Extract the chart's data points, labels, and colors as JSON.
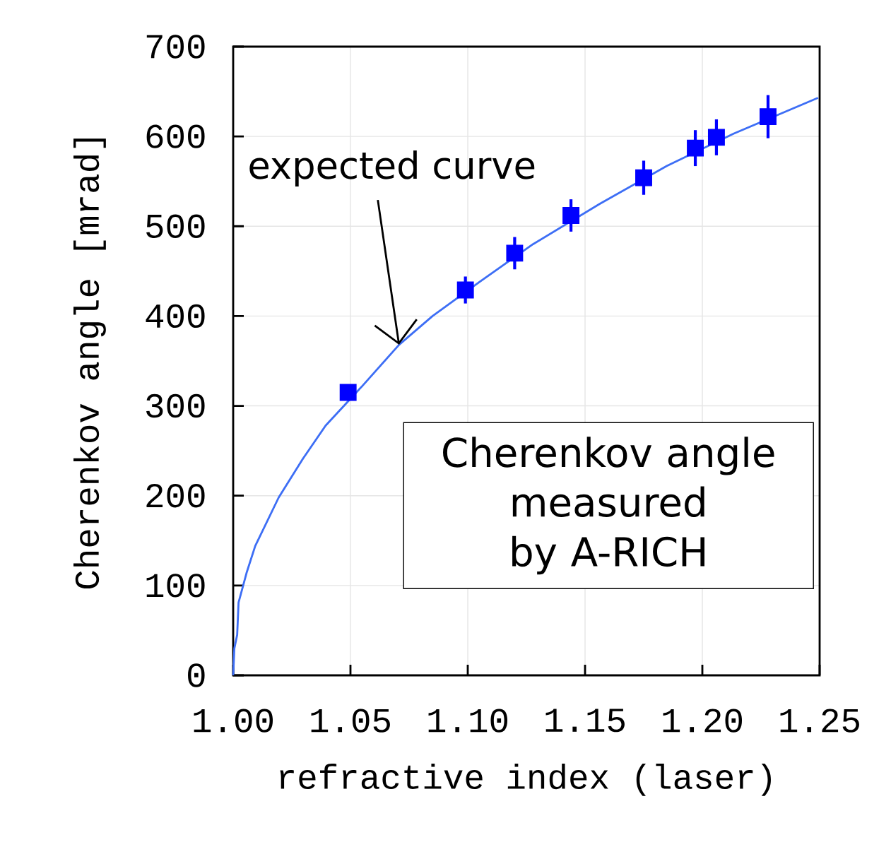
{
  "chart_data": {
    "type": "line",
    "xlabel": "refractive index (laser)",
    "ylabel": "Cherenkov angle [mrad]",
    "xlim": [
      1.0,
      1.25
    ],
    "ylim": [
      0,
      700
    ],
    "xticks": [
      {
        "value": 1.0,
        "label": "1.00"
      },
      {
        "value": 1.05,
        "label": "1.05"
      },
      {
        "value": 1.1,
        "label": "1.10"
      },
      {
        "value": 1.15,
        "label": "1.15"
      },
      {
        "value": 1.2,
        "label": "1.20"
      },
      {
        "value": 1.25,
        "label": "1.25"
      }
    ],
    "yticks": [
      0,
      100,
      200,
      300,
      400,
      500,
      600,
      700
    ],
    "grid": true,
    "series": [
      {
        "color": "#3d6ef5",
        "marker": "none",
        "x": [
          1.0,
          1.0005,
          1.0017,
          1.0023,
          1.0057,
          1.0094,
          1.0194,
          1.0297,
          1.0394,
          1.055,
          1.0707,
          1.085,
          1.105,
          1.1278,
          1.1563,
          1.1848,
          1.2133,
          1.2493
        ],
        "values": [
          0,
          30,
          45,
          81,
          114,
          144,
          198,
          241,
          278,
          322,
          368,
          400,
          438,
          480,
          525,
          567,
          603,
          643
        ]
      },
      {
        "type": "scatter",
        "color": "#0000ff",
        "marker": "square",
        "x": [
          1.049,
          1.099,
          1.12,
          1.144,
          1.175,
          1.197,
          1.206,
          1.228
        ],
        "values": [
          315,
          429,
          470,
          512,
          554,
          587,
          599,
          622
        ],
        "errors": [
          5,
          15,
          18,
          18,
          19,
          20,
          20,
          24
        ]
      }
    ],
    "annotations": [
      {
        "text": "expected curve",
        "x": 1.0707,
        "y": 368
      },
      "Cherenkov angle measured by A-RICH"
    ]
  }
}
